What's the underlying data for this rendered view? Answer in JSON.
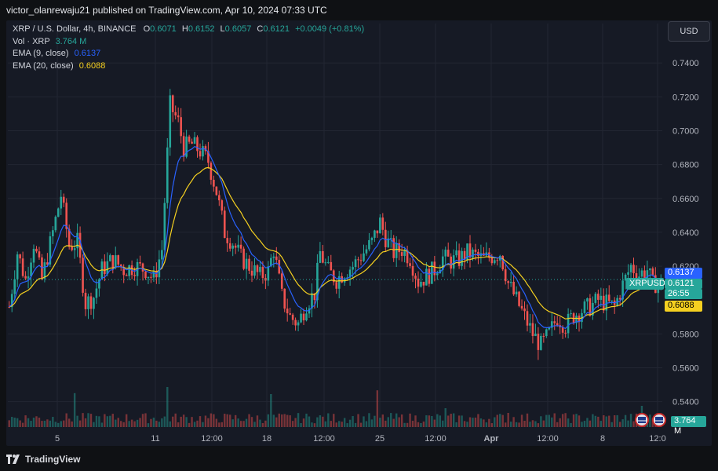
{
  "header": {
    "published_line": "victor_olanrewaju21 published on TradingView.com, Apr 10, 2024 07:33 UTC"
  },
  "legend": {
    "symbol_line": "XRP / U.S. Dollar, 4h, BINANCE",
    "open_label": "O",
    "open": "0.6071",
    "high_label": "H",
    "high": "0.6152",
    "low_label": "L",
    "low": "0.6057",
    "close_label": "C",
    "close": "0.6121",
    "change": "+0.0049 (+0.81%)",
    "vol_label": "Vol · XRP",
    "vol_value": "3.764 M",
    "ema9_label": "EMA (9, close)",
    "ema9_value": "0.6137",
    "ema20_label": "EMA (20, close)",
    "ema20_value": "0.6088"
  },
  "toolbar": {
    "currency_button": "USD"
  },
  "price_labels": {
    "ema9": "0.6137",
    "symbol": "XRPUSD",
    "last_price": "0.6121",
    "countdown": "26:55",
    "ema20": "0.6088",
    "volume": "3.764 M"
  },
  "footer": {
    "brand": "TradingView"
  },
  "colors": {
    "background": "#161a25",
    "up": "#26a69a",
    "down": "#ef5350",
    "ema9": "#2962ff",
    "ema20": "#f5d020",
    "grid": "#222632"
  },
  "chart_data": {
    "type": "candlestick",
    "symbol": "XRPUSD",
    "timeframe": "4h",
    "exchange": "BINANCE",
    "y_axis_ticks": [
      "0.7400",
      "0.7200",
      "0.7000",
      "0.6800",
      "0.6600",
      "0.6400",
      "0.6200",
      "0.5800",
      "0.5600",
      "0.5400"
    ],
    "ylim": [
      0.525,
      0.754
    ],
    "x_axis_ticks": [
      "5",
      "11",
      "12:00",
      "18",
      "12:00",
      "25",
      "12:00",
      "Apr",
      "12:00",
      "8",
      "12:0"
    ],
    "grid": true,
    "last_price": 0.6121,
    "ema9_last": 0.6137,
    "ema20_last": 0.6088,
    "close_path": [
      [
        0,
        0.596
      ],
      [
        3,
        0.628
      ],
      [
        6,
        0.612
      ],
      [
        9,
        0.634
      ],
      [
        12,
        0.612
      ],
      [
        16,
        0.64
      ],
      [
        19,
        0.662
      ],
      [
        22,
        0.632
      ],
      [
        25,
        0.634
      ],
      [
        28,
        0.598
      ],
      [
        31,
        0.602
      ],
      [
        34,
        0.618
      ],
      [
        38,
        0.624
      ],
      [
        42,
        0.618
      ],
      [
        46,
        0.62
      ],
      [
        50,
        0.618
      ],
      [
        53,
        0.612
      ],
      [
        56,
        0.63
      ],
      [
        59,
        0.715
      ],
      [
        62,
        0.705
      ],
      [
        64,
        0.69
      ],
      [
        67,
        0.692
      ],
      [
        70,
        0.688
      ],
      [
        73,
        0.682
      ],
      [
        76,
        0.664
      ],
      [
        79,
        0.64
      ],
      [
        82,
        0.634
      ],
      [
        85,
        0.625
      ],
      [
        88,
        0.62
      ],
      [
        92,
        0.614
      ],
      [
        95,
        0.617
      ],
      [
        97,
        0.63
      ],
      [
        100,
        0.602
      ],
      [
        103,
        0.59
      ],
      [
        106,
        0.586
      ],
      [
        109,
        0.598
      ],
      [
        112,
        0.604
      ],
      [
        114,
        0.628
      ],
      [
        117,
        0.617
      ],
      [
        120,
        0.612
      ],
      [
        123,
        0.617
      ],
      [
        126,
        0.62
      ],
      [
        130,
        0.628
      ],
      [
        133,
        0.634
      ],
      [
        136,
        0.646
      ],
      [
        138,
        0.637
      ],
      [
        141,
        0.628
      ],
      [
        144,
        0.63
      ],
      [
        147,
        0.625
      ],
      [
        150,
        0.611
      ],
      [
        153,
        0.614
      ],
      [
        156,
        0.618
      ],
      [
        159,
        0.625
      ],
      [
        162,
        0.623
      ],
      [
        165,
        0.624
      ],
      [
        168,
        0.628
      ],
      [
        171,
        0.626
      ],
      [
        174,
        0.624
      ],
      [
        177,
        0.626
      ],
      [
        180,
        0.628
      ],
      [
        183,
        0.61
      ],
      [
        186,
        0.6
      ],
      [
        189,
        0.59
      ],
      [
        192,
        0.58
      ],
      [
        195,
        0.573
      ],
      [
        198,
        0.58
      ],
      [
        201,
        0.59
      ],
      [
        204,
        0.585
      ],
      [
        207,
        0.591
      ],
      [
        210,
        0.594
      ],
      [
        213,
        0.596
      ],
      [
        216,
        0.6
      ],
      [
        219,
        0.598
      ],
      [
        222,
        0.596
      ],
      [
        225,
        0.609
      ],
      [
        228,
        0.62
      ],
      [
        231,
        0.615
      ],
      [
        234,
        0.618
      ],
      [
        236,
        0.609
      ],
      [
        239,
        0.612
      ]
    ],
    "volume_spikes": [
      [
        24,
        0.72
      ],
      [
        58,
        0.85
      ],
      [
        96,
        0.7
      ],
      [
        135,
        0.78
      ],
      [
        160,
        0.4
      ],
      [
        183,
        0.3
      ],
      [
        232,
        0.45
      ]
    ],
    "candle_count": 240
  }
}
